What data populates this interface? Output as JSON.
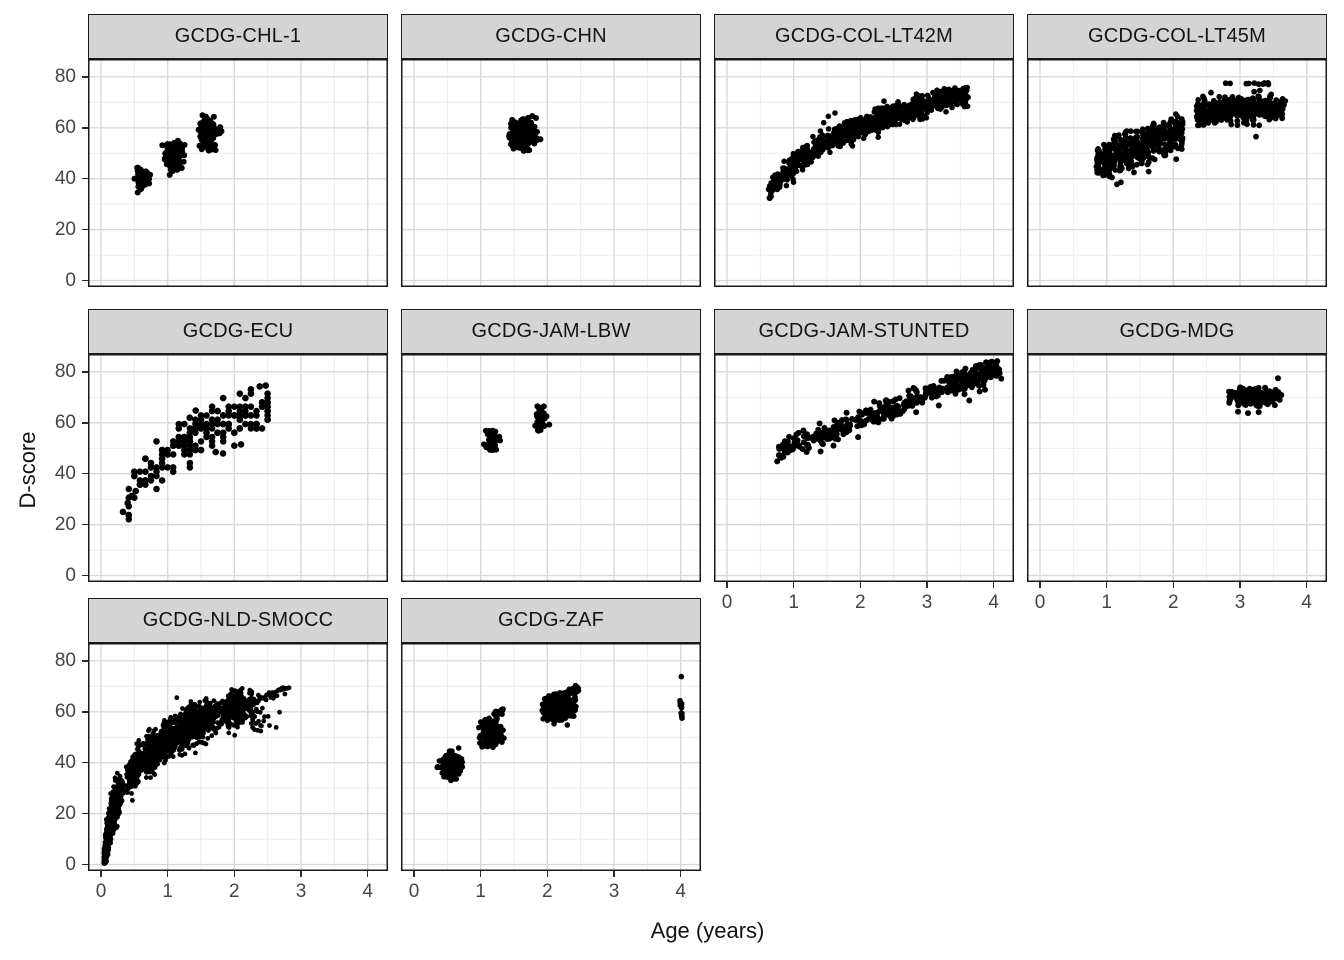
{
  "chart_data": {
    "type": "scatter",
    "title": "",
    "xlabel": "Age (years)",
    "ylabel": "D-score",
    "x_ticks": [
      0,
      1,
      2,
      3,
      4
    ],
    "y_ticks": [
      0,
      20,
      40,
      60,
      80
    ],
    "xlim": [
      -0.2,
      4.3
    ],
    "ylim": [
      -2.5,
      87
    ],
    "grid": "major+minor",
    "legend": "none",
    "point_color": "#000000",
    "strip_fill": "#d4d4d4",
    "major_grid_color": "#d8d8d8",
    "minor_grid_color": "#eaeaea",
    "panel_border_color": "#1a1a1a",
    "facets": [
      {
        "title": "GCDG-CHL-1",
        "row": 0,
        "col": 0,
        "y_axis": true,
        "x_axis": false,
        "r": 3.0,
        "seed": 11,
        "clusters": [
          {
            "type": "blob",
            "cx": 0.62,
            "cy": 40,
            "sx": 0.05,
            "sy": 1.9,
            "n": 75,
            "clampY": [
              34.5,
              45
            ]
          },
          {
            "type": "blob",
            "cx": 1.08,
            "cy": 49,
            "sx": 0.06,
            "sy": 2.4,
            "n": 150,
            "clampY": [
              43,
              55.5
            ]
          },
          {
            "type": "blob",
            "cx": 1.6,
            "cy": 57.5,
            "sx": 0.06,
            "sy": 2.9,
            "n": 150,
            "clampY": [
              50,
              65
            ]
          },
          {
            "type": "pts",
            "pts": [
              [
                1.03,
                41.5
              ]
            ]
          }
        ]
      },
      {
        "title": "GCDG-CHN",
        "row": 0,
        "col": 1,
        "y_axis": false,
        "x_axis": false,
        "r": 3.0,
        "seed": 22,
        "clusters": [
          {
            "type": "blob",
            "cx": 1.63,
            "cy": 58,
            "sx": 0.085,
            "sy": 2.7,
            "n": 320,
            "clampX": [
              1.4,
              1.93
            ],
            "clampY": [
              50.5,
              65.5
            ]
          }
        ]
      },
      {
        "title": "GCDG-COL-LT42M",
        "row": 0,
        "col": 2,
        "y_axis": false,
        "x_axis": false,
        "r": 2.8,
        "seed": 33,
        "clusters": [
          {
            "type": "band",
            "fn": "log",
            "x0": 0.62,
            "x1": 3.62,
            "a": 45.1,
            "b": 21.8,
            "sd": 2.1,
            "n": 900,
            "ymin": 32,
            "ymax": 76
          },
          {
            "type": "pts",
            "pts": [
              [
                1.52,
                64.5
              ],
              [
                1.62,
                65.8
              ],
              [
                1.45,
                62
              ]
            ]
          }
        ]
      },
      {
        "title": "GCDG-COL-LT45M",
        "row": 0,
        "col": 3,
        "y_axis": false,
        "x_axis": false,
        "r": 2.9,
        "seed": 44,
        "clusters": [
          {
            "type": "cols",
            "x0": 0.87,
            "x1": 2.12,
            "step": 0.0833,
            "a": 38,
            "b": 9.5,
            "sd": 3.4,
            "n": 26,
            "jx": 0.013,
            "ymin": 37.5,
            "ymax": 65.5
          },
          {
            "type": "cols",
            "x0": 2.37,
            "x1": 3.62,
            "step": 0.0833,
            "a": 61.7,
            "b": 1.8,
            "sd": 2.6,
            "n": 25,
            "jx": 0.013,
            "ymin": 60.5,
            "ymax": 75
          },
          {
            "type": "line",
            "x0": 2.78,
            "x1": 3.52,
            "y0": 77.2,
            "y1": 77.4,
            "sd": 0.25,
            "n": 11
          },
          {
            "type": "pts",
            "pts": [
              [
                0.98,
                41.5
              ],
              [
                1.08,
                40.5
              ],
              [
                1.33,
                44
              ],
              [
                1.41,
                42.5
              ],
              [
                1.63,
                46.5
              ],
              [
                1.63,
                42.8
              ],
              [
                2.72,
                63
              ],
              [
                3.06,
                62
              ],
              [
                3.24,
                56.5
              ],
              [
                3.44,
                63.2
              ],
              [
                3.66,
                69
              ],
              [
                3.68,
                70.5
              ]
            ]
          }
        ]
      },
      {
        "title": "GCDG-ECU",
        "row": 1,
        "col": 0,
        "y_axis": true,
        "x_axis": false,
        "r": 3.3,
        "seed": 55,
        "clusters": [
          {
            "type": "lattice",
            "x0": 0.4165,
            "x1": 2.54,
            "step": 0.0833,
            "a": 48,
            "b": 19.5,
            "sd": 4.3,
            "ystep": 1.7,
            "ymax": 75
          },
          {
            "type": "pts",
            "pts": [
              [
                0.33,
                25
              ],
              [
                0.4,
                28.5
              ],
              [
                0.46,
                31.3
              ],
              [
                0.52,
                33.2
              ],
              [
                1.33,
                62
              ],
              [
                1.42,
                64.8
              ],
              [
                1.72,
                48.5
              ],
              [
                1.83,
                48
              ],
              [
                2.1,
                51.5
              ],
              [
                2.38,
                74.3
              ],
              [
                2.47,
                74.6
              ]
            ]
          }
        ]
      },
      {
        "title": "GCDG-JAM-LBW",
        "row": 1,
        "col": 1,
        "y_axis": false,
        "x_axis": false,
        "r": 3.0,
        "seed": 66,
        "clusters": [
          {
            "type": "blob",
            "cx": 1.17,
            "cy": 53.5,
            "sx": 0.035,
            "sy": 2.1,
            "n": 50,
            "clampY": [
              49,
              58
            ]
          },
          {
            "type": "blob",
            "cx": 1.9,
            "cy": 62.5,
            "sx": 0.035,
            "sy": 2.7,
            "n": 55,
            "clampY": [
              56.5,
              67.5
            ]
          },
          {
            "type": "pts",
            "pts": [
              [
                1.05,
                51.5
              ],
              [
                1.28,
                54.5
              ]
            ]
          }
        ]
      },
      {
        "title": "GCDG-JAM-STUNTED",
        "row": 1,
        "col": 2,
        "y_axis": false,
        "x_axis": true,
        "r": 3.0,
        "seed": 77,
        "clusters": [
          {
            "type": "band",
            "fn": "lin",
            "x0": 0.75,
            "x1": 4.12,
            "a": 41,
            "b": 10,
            "sd": 2.3,
            "n": 360,
            "ymin": 44,
            "ymax": 84.5
          },
          {
            "type": "band",
            "fn": "lin",
            "x0": 3.3,
            "x1": 4.1,
            "a": 41,
            "b": 10,
            "sd": 2.2,
            "n": 90,
            "ymin": 70,
            "ymax": 84.5
          },
          {
            "type": "pts",
            "pts": [
              [
                2.35,
                62
              ],
              [
                2.6,
                63.5
              ],
              [
                3.87,
                73
              ]
            ]
          }
        ]
      },
      {
        "title": "GCDG-MDG",
        "row": 1,
        "col": 3,
        "y_axis": false,
        "x_axis": true,
        "r": 3.0,
        "seed": 88,
        "clusters": [
          {
            "type": "blob",
            "cx": 3.22,
            "cy": 70.2,
            "sx": 0.2,
            "sy": 1.6,
            "n": 210,
            "clampX": [
              2.83,
              3.64
            ],
            "clampY": [
              66.5,
              74
            ]
          },
          {
            "type": "pts",
            "pts": [
              [
                3.57,
                77.5
              ],
              [
                2.97,
                64.3
              ],
              [
                3.12,
                63.8
              ],
              [
                3.28,
                64.2
              ],
              [
                2.84,
                67.8
              ]
            ]
          }
        ]
      },
      {
        "title": "GCDG-NLD-SMOCC",
        "row": 2,
        "col": 0,
        "y_axis": true,
        "x_axis": true,
        "r": 2.4,
        "seed": 99,
        "clusters": [
          {
            "type": "visits",
            "xs": [
              0.083,
              0.167,
              0.25,
              0.5,
              0.75,
              1.0,
              1.25,
              1.5,
              2.0
            ],
            "ns": [
              260,
              260,
              260,
              250,
              250,
              250,
              240,
              240,
              240
            ],
            "a": 49.4,
            "b": 17,
            "sd": 3.6,
            "ymin": 0.5,
            "ymax": 71
          },
          {
            "type": "line",
            "x0": 2.0,
            "x1": 2.82,
            "y0": 62,
            "y1": 69.3,
            "sd": 1.0,
            "n": 55
          },
          {
            "type": "blob",
            "cx": 2.35,
            "cy": 57,
            "sx": 0.12,
            "sy": 3.5,
            "n": 25,
            "clampY": [
              49,
              63
            ]
          },
          {
            "type": "pts",
            "pts": [
              [
                2.75,
                69.2
              ],
              [
                2.82,
                69.4
              ]
            ]
          }
        ]
      },
      {
        "title": "GCDG-ZAF",
        "row": 2,
        "col": 1,
        "y_axis": false,
        "x_axis": true,
        "r": 2.8,
        "seed": 110,
        "clusters": [
          {
            "type": "blob",
            "cx": 0.55,
            "cy": 38.5,
            "sx": 0.075,
            "sy": 2.3,
            "n": 260,
            "clampX": [
              0.34,
              0.8
            ],
            "clampY": [
              33,
              45.5
            ]
          },
          {
            "type": "blob",
            "cx": 1.15,
            "cy": 51.5,
            "sx": 0.065,
            "sy": 2.7,
            "n": 300,
            "clampX": [
              0.97,
              1.36
            ],
            "clampY": [
              45.5,
              57.5
            ]
          },
          {
            "type": "line",
            "x0": 1.2,
            "x1": 1.34,
            "y0": 59.3,
            "y1": 60.3,
            "sd": 0.5,
            "n": 30
          },
          {
            "type": "blob",
            "cx": 2.15,
            "cy": 61.5,
            "sx": 0.13,
            "sy": 2.4,
            "n": 430,
            "clampX": [
              1.92,
              2.45
            ],
            "clampY": [
              56.5,
              66.5
            ]
          },
          {
            "type": "line",
            "x0": 1.98,
            "x1": 2.47,
            "y0": 65,
            "y1": 69,
            "sd": 0.7,
            "n": 70
          },
          {
            "type": "vline",
            "x": 4.01,
            "y0": 56.5,
            "y1": 64.5,
            "n": 16
          },
          {
            "type": "pts",
            "pts": [
              [
                1.02,
                46.2
              ],
              [
                1.16,
                47.6
              ],
              [
                2.1,
                55.3
              ],
              [
                2.3,
                54.8
              ],
              [
                4.01,
                73.8
              ],
              [
                0.67,
                45.8
              ]
            ]
          }
        ]
      }
    ]
  }
}
